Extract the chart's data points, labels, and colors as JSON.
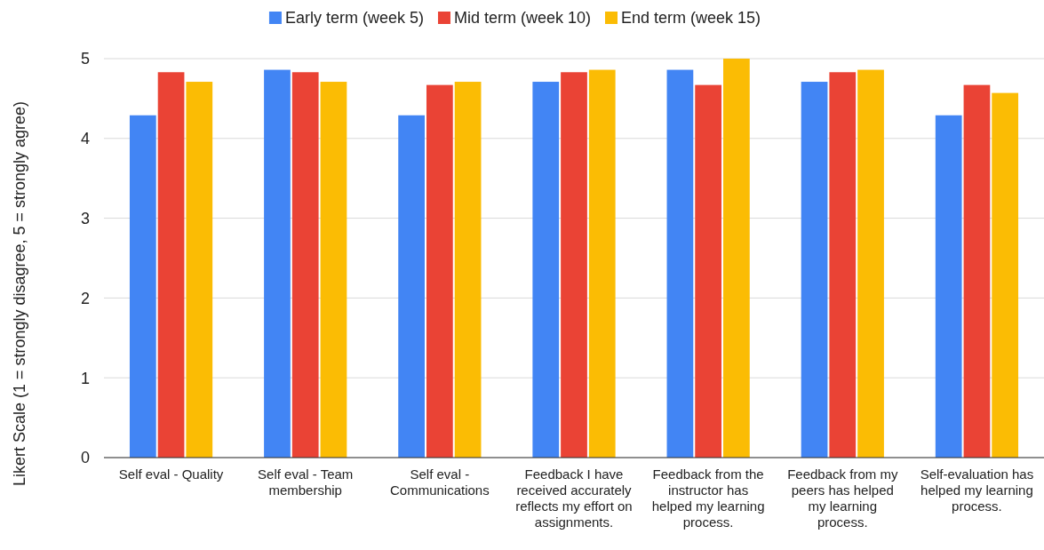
{
  "chart_data": {
    "type": "bar",
    "ylabel": "Likert Scale (1 = strongly disagree, 5 = strongly agree)",
    "categories": [
      "Self eval - Quality",
      "Self eval - Team membership",
      "Self eval - Communications",
      "Feedback I have received accurately reflects my effort on assignments.",
      "Feedback from the instructor has helped my learning process.",
      "Feedback from my peers has helped my learning process.",
      "Self-evaluation has helped my learning process."
    ],
    "series": [
      {
        "name": "Early term (week 5)",
        "color": "#4285f4",
        "values": [
          4.29,
          4.86,
          4.29,
          4.71,
          4.86,
          4.71,
          4.29
        ]
      },
      {
        "name": "Mid term (week 10)",
        "color": "#ea4335",
        "values": [
          4.83,
          4.83,
          4.67,
          4.83,
          4.67,
          4.83,
          4.67
        ]
      },
      {
        "name": "End term (week 15)",
        "color": "#fbbc04",
        "values": [
          4.71,
          4.71,
          4.71,
          4.86,
          5,
          4.86,
          4.57
        ]
      }
    ],
    "ylim": [
      0,
      5
    ],
    "yticks": [
      0,
      1,
      2,
      3,
      4,
      5
    ],
    "grid": true,
    "legend": "top"
  }
}
